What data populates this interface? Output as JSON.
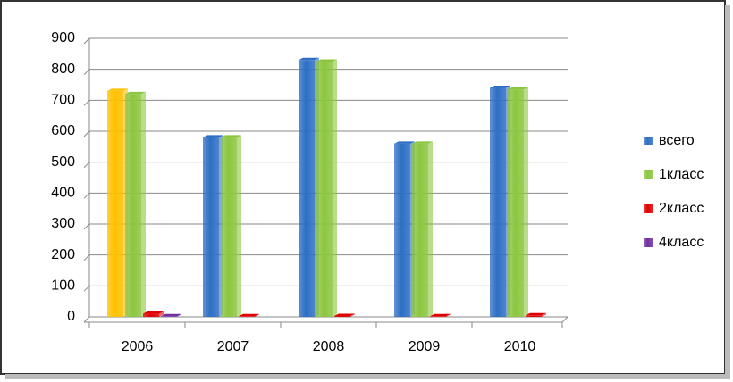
{
  "chart_data": {
    "type": "bar",
    "categories": [
      "2006",
      "2007",
      "2008",
      "2009",
      "2010"
    ],
    "series": [
      {
        "name": "всего",
        "color": "#2e6fc4",
        "colors": [
          "#ffc000",
          "#2e6fc4",
          "#2e6fc4",
          "#2e6fc4",
          "#2e6fc4"
        ],
        "values": [
          730,
          580,
          830,
          560,
          740
        ]
      },
      {
        "name": "1класс",
        "color": "#8cc63f",
        "values": [
          720,
          580,
          825,
          560,
          735
        ]
      },
      {
        "name": "2класс",
        "color": "#e00000",
        "values": [
          10,
          2,
          3,
          2,
          5
        ]
      },
      {
        "name": "4класс",
        "color": "#7030a0",
        "values": [
          2,
          null,
          null,
          null,
          null
        ]
      }
    ],
    "ylim": [
      0,
      900
    ],
    "yticks": [
      0,
      100,
      200,
      300,
      400,
      500,
      600,
      700,
      800,
      900
    ],
    "grid": true,
    "legend": "right"
  }
}
